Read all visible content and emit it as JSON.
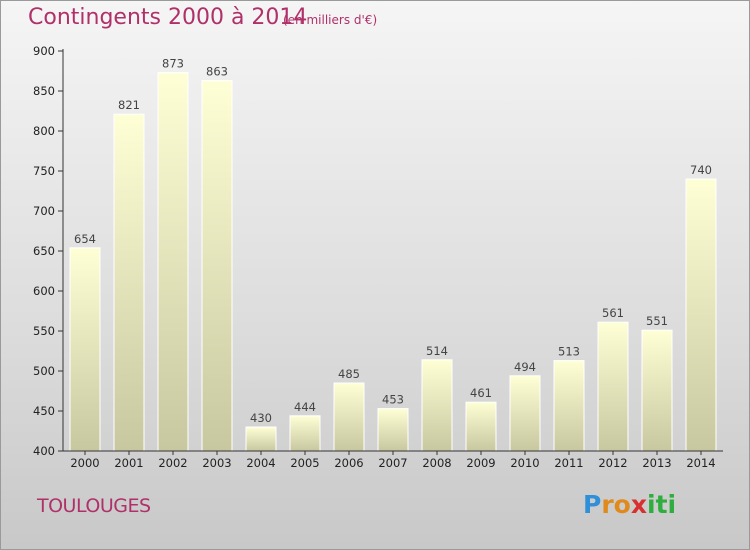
{
  "title": "Contingents 2000 à 2014",
  "subtitle": "(en milliers d'€)",
  "commune": "TOULOUGES",
  "logo": {
    "letters": [
      "P",
      "r",
      "o",
      "x",
      "i",
      "t",
      "i"
    ],
    "colors": [
      "#2f8fd8",
      "#e08a1e",
      "#e08a1e",
      "#d82f2f",
      "#2fae3f",
      "#2fae3f",
      "#2fae3f"
    ]
  },
  "chart_data": {
    "type": "bar",
    "categories": [
      "2000",
      "2001",
      "2002",
      "2003",
      "2004",
      "2005",
      "2006",
      "2007",
      "2008",
      "2009",
      "2010",
      "2011",
      "2012",
      "2013",
      "2014"
    ],
    "values": [
      654,
      821,
      873,
      863,
      430,
      444,
      485,
      453,
      514,
      461,
      494,
      513,
      561,
      551,
      740
    ],
    "title": "Contingents 2000 à 2014",
    "ylabel": "",
    "xlabel": "",
    "ylim": [
      400,
      900
    ],
    "yticks": [
      400,
      450,
      500,
      550,
      600,
      650,
      700,
      750,
      800,
      850,
      900
    ],
    "grid": false,
    "colors": {
      "bar_top": "#ffffd6",
      "bar_bottom": "#c8c8a0",
      "axis": "#333333",
      "title": "#b0306a"
    }
  }
}
